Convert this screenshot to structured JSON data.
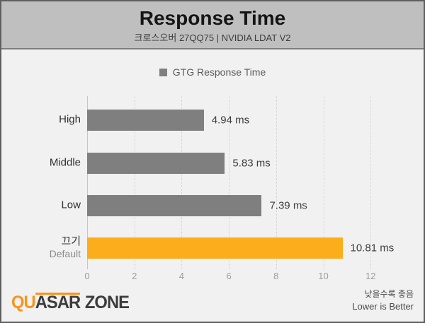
{
  "colors": {
    "header_bg": "#bfbfbf",
    "body_bg": "#f1f1f1",
    "bar_gray": "#7f7f7f",
    "bar_orange": "#fbad1b",
    "accent_orange": "#f7941d",
    "logo_dark": "#3c3c3c"
  },
  "header": {
    "title": "Response Time",
    "subtitle": "크로스오버 27QQ75  |  NVIDIA LDAT V2"
  },
  "legend": {
    "label": "GTG Response Time",
    "swatch_color": "#7f7f7f"
  },
  "chart_data": {
    "type": "bar",
    "orientation": "horizontal",
    "title": "Response Time",
    "subtitle": "크로스오버 27QQ75 | NVIDIA LDAT V2",
    "legend_entries": [
      "GTG Response Time"
    ],
    "legend_position": "top-center",
    "unit": "ms",
    "categories": [
      "High",
      "Middle",
      "Low",
      "끄기"
    ],
    "sublabels": [
      "",
      "",
      "",
      "Default"
    ],
    "values": [
      4.94,
      5.83,
      7.39,
      10.81
    ],
    "value_labels": [
      "4.94 ms",
      "5.83 ms",
      "7.39 ms",
      "10.81 ms"
    ],
    "bar_colors": [
      "#7f7f7f",
      "#7f7f7f",
      "#7f7f7f",
      "#fbad1b"
    ],
    "xlim": [
      0,
      12
    ],
    "xticks": [
      0,
      2,
      4,
      6,
      8,
      10,
      12
    ],
    "grid": "dashed-vertical",
    "annotation": "낮을수록 좋음 / Lower is Better"
  },
  "footer": {
    "logo": {
      "part_qu": "QU",
      "part_asar": "ASAR",
      "part_zone": "ZONE"
    },
    "note_ko": "낮을수록 좋음",
    "note_en": "Lower is Better"
  }
}
